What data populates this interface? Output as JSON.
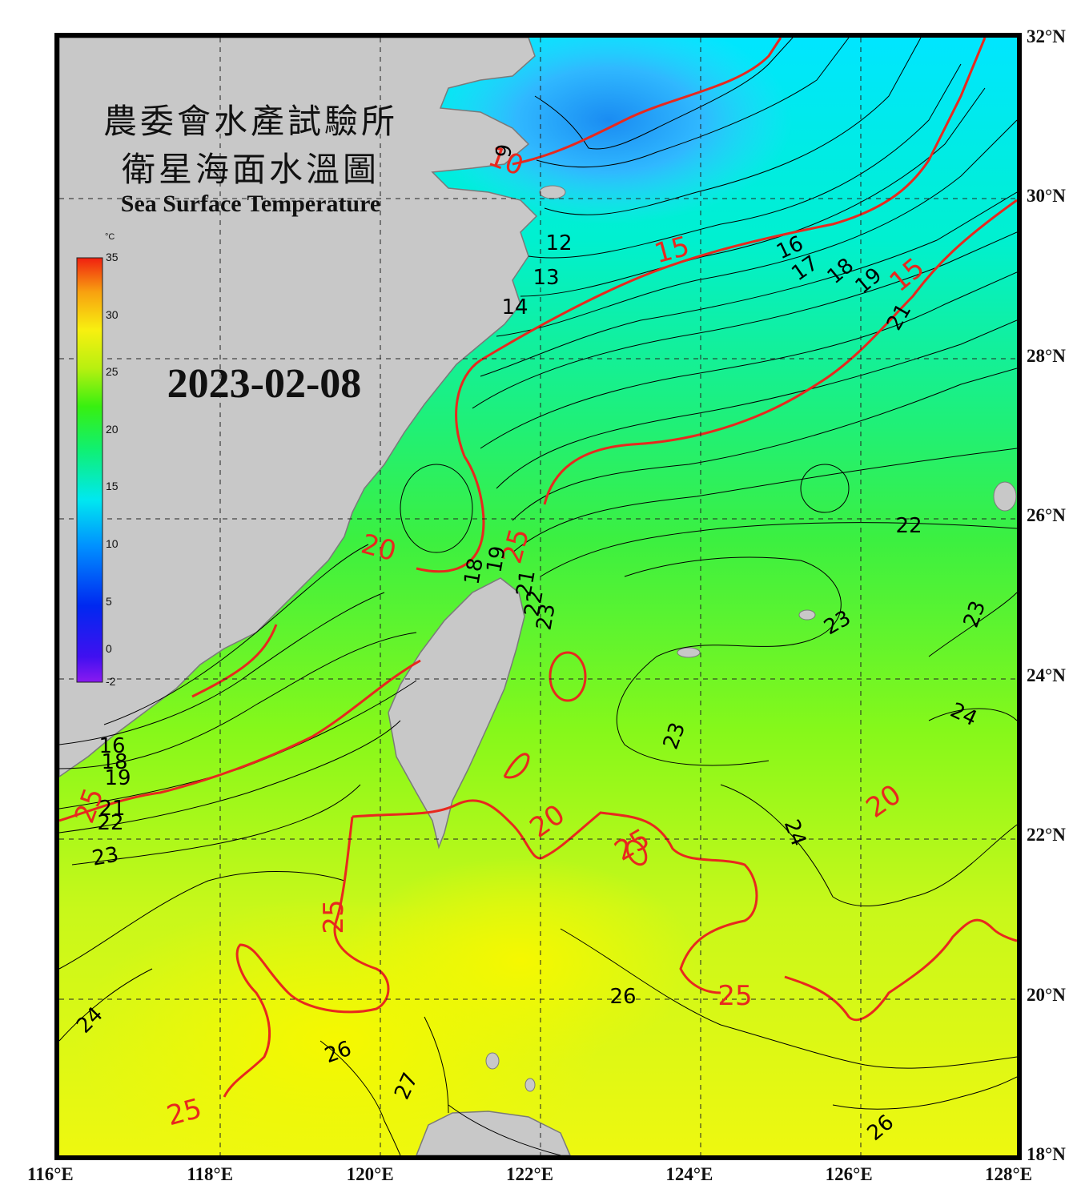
{
  "title": {
    "line1": "農委會水產試驗所",
    "line2": "衛星海面水溫圖",
    "english": "Sea Surface Temperature"
  },
  "date": "2023-02-08",
  "colorbar": {
    "unit": "°C",
    "min": -2,
    "max": 35,
    "ticks": [
      "35",
      "30",
      "25",
      "20",
      "15",
      "10",
      "5",
      "0",
      "-2"
    ]
  },
  "map": {
    "lon_range": [
      116,
      128
    ],
    "lat_range": [
      18,
      32
    ],
    "lon_labels": [
      "116°E",
      "118°E",
      "120°E",
      "122°E",
      "124°E",
      "126°E",
      "128°E"
    ],
    "lat_labels": [
      "32°N",
      "30°N",
      "28°N",
      "26°N",
      "24°N",
      "22°N",
      "20°N",
      "18°N"
    ],
    "grid": "dashed",
    "colors": {
      "land": "#c8c8c8",
      "coast": "#808080",
      "major_isotherm": "#e8281e",
      "minor_isotherm": "#000000"
    }
  },
  "isotherm_labels": {
    "major": [
      "10",
      "15",
      "20",
      "25",
      "15",
      "20",
      "20",
      "25",
      "25",
      "25",
      "25",
      "25"
    ],
    "minor": [
      "9",
      "12",
      "13",
      "14",
      "16",
      "17",
      "18",
      "19",
      "21",
      "22",
      "23",
      "23",
      "23",
      "24",
      "24",
      "24",
      "26",
      "26",
      "26",
      "27",
      "16",
      "18",
      "19",
      "21",
      "22",
      "23",
      "18",
      "19",
      "21",
      "22",
      "23"
    ]
  }
}
